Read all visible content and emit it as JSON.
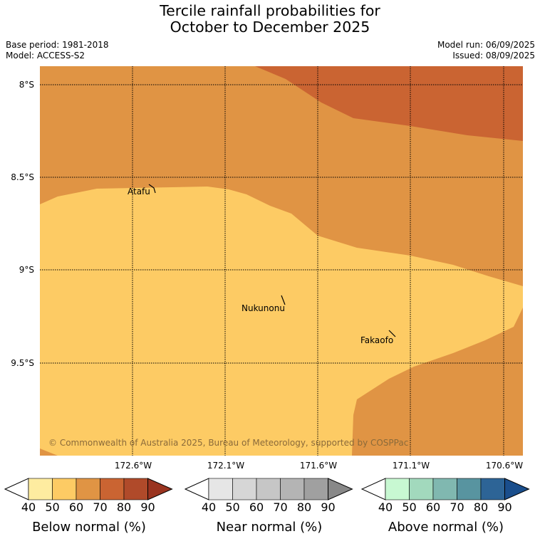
{
  "title_line1": "Tercile rainfall probabilities for",
  "title_line2": "October to December 2025",
  "base_period": "Base period: 1981-2018",
  "model": "Model: ACCESS-S2",
  "model_run": "Model run: 06/09/2025",
  "issued": "Issued: 08/09/2025",
  "map": {
    "lat_labels": [
      "8°S",
      "8.5°S",
      "9°S",
      "9.5°S"
    ],
    "lon_labels": [
      "172.6°W",
      "172.1°W",
      "171.6°W",
      "171.1°W",
      "170.6°W"
    ],
    "places": [
      "Atafu",
      "Nukunonu",
      "Fakaofo"
    ],
    "copyright": "© Commonwealth of Australia 2025, Bureau of Meteorology, supported by COSPPac",
    "colors": {
      "below_50_60": "#fdcb64",
      "below_60_70": "#e09444",
      "below_70_80": "#ca6432"
    }
  },
  "colorbars": [
    {
      "label": "Below normal (%)",
      "ticks": [
        "40",
        "50",
        "60",
        "70",
        "80",
        "90"
      ],
      "colors": [
        "#ffffff",
        "#feeca0",
        "#fdcb64",
        "#e09444",
        "#ca6432",
        "#b04a2a",
        "#9a3420"
      ]
    },
    {
      "label": "Near normal (%)",
      "ticks": [
        "40",
        "50",
        "60",
        "70",
        "80",
        "90"
      ],
      "colors": [
        "#ffffff",
        "#e6e6e6",
        "#d6d6d6",
        "#c6c6c6",
        "#b4b4b4",
        "#a0a0a0",
        "#888888"
      ]
    },
    {
      "label": "Above normal (%)",
      "ticks": [
        "40",
        "50",
        "60",
        "70",
        "80",
        "90"
      ],
      "colors": [
        "#ffffff",
        "#c8f8d2",
        "#a2d9bd",
        "#80b8b0",
        "#5894a0",
        "#2d6496",
        "#1a4e8c"
      ]
    }
  ]
}
